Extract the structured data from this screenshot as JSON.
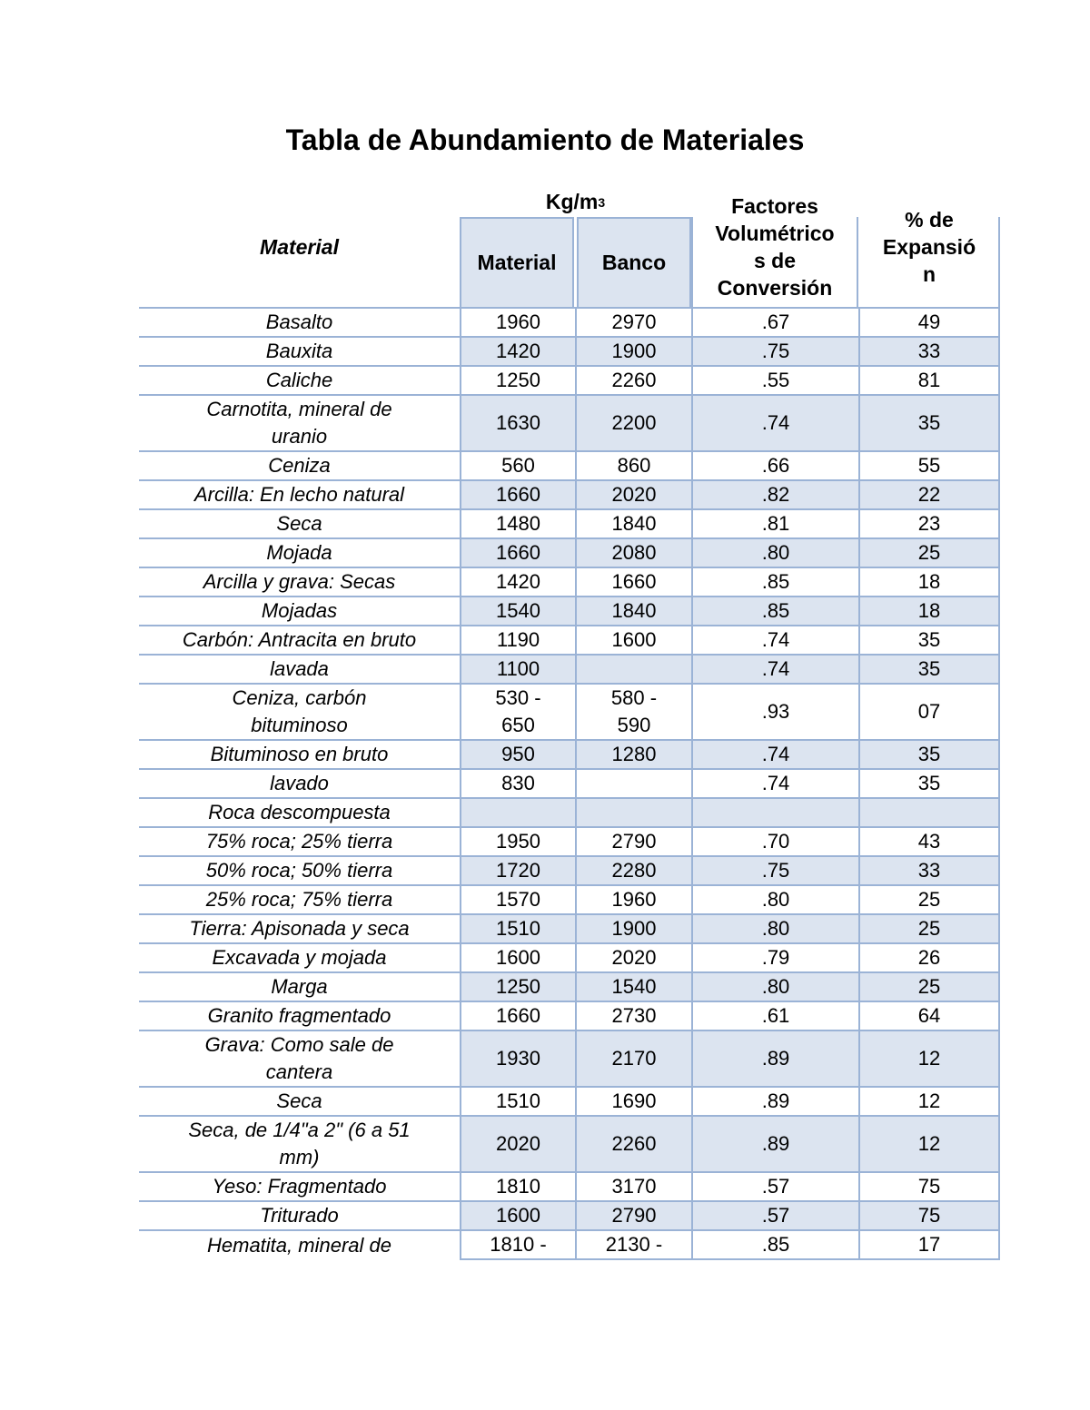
{
  "page": {
    "title": "Tabla de Abundamiento de Materiales"
  },
  "colors": {
    "row_fill": "#dce4f0",
    "table_border": "#9bb3d6"
  },
  "table": {
    "header": {
      "material_col": "Material",
      "kg_unit": "Kg/m",
      "kg_sup": "3",
      "sub_material": "Material",
      "sub_banco": "Banco",
      "factores": "Factores\nVolumétrico\ns de\nConversión",
      "expansion": "% de\nExpansió\nn"
    },
    "rows": [
      {
        "name": "Basalto",
        "material": "1960",
        "banco": "2970",
        "factor": ".67",
        "expansion": "49"
      },
      {
        "name": "Bauxita",
        "material": "1420",
        "banco": "1900",
        "factor": ".75",
        "expansion": "33"
      },
      {
        "name": "Caliche",
        "material": "1250",
        "banco": "2260",
        "factor": ".55",
        "expansion": "81"
      },
      {
        "name": "Carnotita, mineral de\nuranio",
        "material": "1630",
        "banco": "2200",
        "factor": ".74",
        "expansion": "35"
      },
      {
        "name": "Ceniza",
        "material": "560",
        "banco": "860",
        "factor": ".66",
        "expansion": "55"
      },
      {
        "name": "Arcilla: En lecho natural",
        "material": "1660",
        "banco": "2020",
        "factor": ".82",
        "expansion": "22"
      },
      {
        "name": "Seca",
        "material": "1480",
        "banco": "1840",
        "factor": ".81",
        "expansion": "23"
      },
      {
        "name": "Mojada",
        "material": "1660",
        "banco": "2080",
        "factor": ".80",
        "expansion": "25"
      },
      {
        "name": "Arcilla y grava: Secas",
        "material": "1420",
        "banco": "1660",
        "factor": ".85",
        "expansion": "18"
      },
      {
        "name": "Mojadas",
        "material": "1540",
        "banco": "1840",
        "factor": ".85",
        "expansion": "18"
      },
      {
        "name": "Carbón: Antracita en bruto",
        "material": "1190",
        "banco": "1600",
        "factor": ".74",
        "expansion": "35"
      },
      {
        "name": "lavada",
        "material": "1100",
        "banco": "",
        "factor": ".74",
        "expansion": "35"
      },
      {
        "name": "Ceniza, carbón\nbituminoso",
        "material": "530 -\n650",
        "banco": "580 -\n590",
        "factor": ".93",
        "expansion": "07"
      },
      {
        "name": "Bituminoso en bruto",
        "material": "950",
        "banco": "1280",
        "factor": ".74",
        "expansion": "35"
      },
      {
        "name": "lavado",
        "material": "830",
        "banco": "",
        "factor": ".74",
        "expansion": "35"
      },
      {
        "name": "Roca descompuesta",
        "material": "",
        "banco": "",
        "factor": "",
        "expansion": ""
      },
      {
        "name": "75% roca; 25% tierra",
        "material": "1950",
        "banco": "2790",
        "factor": ".70",
        "expansion": "43"
      },
      {
        "name": "50% roca; 50% tierra",
        "material": "1720",
        "banco": "2280",
        "factor": ".75",
        "expansion": "33"
      },
      {
        "name": "25% roca; 75% tierra",
        "material": "1570",
        "banco": "1960",
        "factor": ".80",
        "expansion": "25"
      },
      {
        "name": "Tierra: Apisonada y seca",
        "material": "1510",
        "banco": "1900",
        "factor": ".80",
        "expansion": "25"
      },
      {
        "name": "Excavada y mojada",
        "material": "1600",
        "banco": "2020",
        "factor": ".79",
        "expansion": "26"
      },
      {
        "name": "Marga",
        "material": "1250",
        "banco": "1540",
        "factor": ".80",
        "expansion": "25"
      },
      {
        "name": "Granito fragmentado",
        "material": "1660",
        "banco": "2730",
        "factor": ".61",
        "expansion": "64"
      },
      {
        "name": "Grava: Como sale de\ncantera",
        "material": "1930",
        "banco": "2170",
        "factor": ".89",
        "expansion": "12"
      },
      {
        "name": "Seca",
        "material": "1510",
        "banco": "1690",
        "factor": ".89",
        "expansion": "12"
      },
      {
        "name": "Seca, de 1/4\"a 2\" (6 a 51\nmm)",
        "material": "2020",
        "banco": "2260",
        "factor": ".89",
        "expansion": "12"
      },
      {
        "name": "Yeso: Fragmentado",
        "material": "1810",
        "banco": "3170",
        "factor": ".57",
        "expansion": "75"
      },
      {
        "name": "Triturado",
        "material": "1600",
        "banco": "2790",
        "factor": ".57",
        "expansion": "75"
      },
      {
        "name": "Hematita, mineral de",
        "material": "1810 -",
        "banco": "2130 -",
        "factor": ".85",
        "expansion": "17"
      }
    ]
  }
}
